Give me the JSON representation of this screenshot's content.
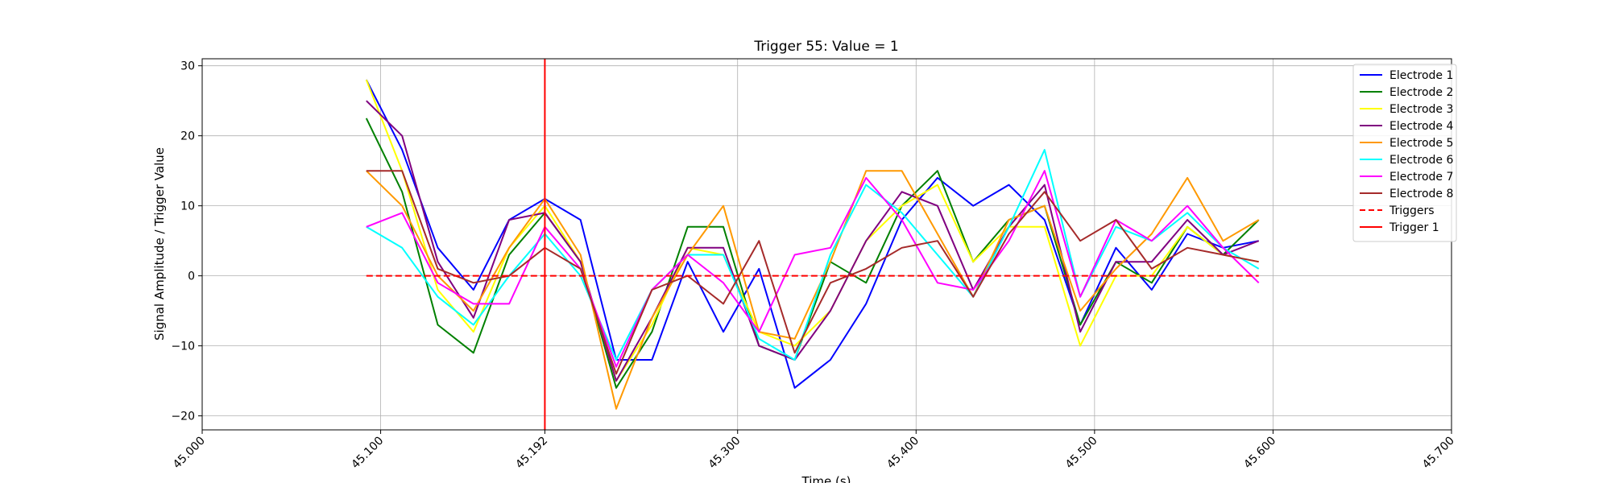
{
  "chart_data": {
    "type": "line",
    "title": "Trigger 55: Value = 1",
    "xlabel": "Time (s)",
    "ylabel": "Signal Amplitude / Trigger Value",
    "xlim": [
      45.0,
      45.7
    ],
    "ylim": [
      -22,
      31
    ],
    "x_ticks": [
      45.0,
      45.1,
      45.192,
      45.3,
      45.4,
      45.5,
      45.6,
      45.7
    ],
    "x_tick_labels": [
      "45.000",
      "45.100",
      "45.192",
      "45.300",
      "45.400",
      "45.500",
      "45.600",
      "45.700"
    ],
    "y_ticks": [
      -20,
      -10,
      0,
      10,
      20,
      30
    ],
    "y_tick_labels": [
      "−20",
      "−10",
      "0",
      "10",
      "20",
      "30"
    ],
    "grid": true,
    "legend_position": "top-right",
    "x": [
      45.092,
      45.112,
      45.132,
      45.152,
      45.172,
      45.192,
      45.212,
      45.232,
      45.252,
      45.272,
      45.292,
      45.312,
      45.332,
      45.352,
      45.372,
      45.392,
      45.412,
      45.432,
      45.452,
      45.472,
      45.492,
      45.512,
      45.532,
      45.552,
      45.572,
      45.592
    ],
    "series": [
      {
        "name": "Electrode 1",
        "color": "#0000ff",
        "style": "solid",
        "values": [
          28,
          18,
          4,
          -2,
          8,
          11,
          8,
          -12,
          -12,
          2,
          -8,
          1,
          -16,
          -12,
          -4,
          8,
          14,
          10,
          13,
          8,
          -7,
          4,
          -2,
          6,
          4,
          5
        ]
      },
      {
        "name": "Electrode 2",
        "color": "#008000",
        "style": "solid",
        "values": [
          22.5,
          12,
          -7,
          -11,
          3,
          9,
          2,
          -16,
          -8,
          7,
          7,
          -10,
          -12,
          2,
          -1,
          10,
          15,
          2,
          8,
          10,
          -7,
          2,
          -1,
          7,
          3,
          8
        ]
      },
      {
        "name": "Electrode 3",
        "color": "#ffff00",
        "style": "solid",
        "values": [
          28,
          15,
          -2,
          -8,
          4,
          10,
          2,
          -15,
          -7,
          4,
          3,
          -8,
          -10,
          -5,
          5,
          10,
          13,
          2,
          7,
          7,
          -10,
          0,
          0,
          7,
          3,
          2
        ]
      },
      {
        "name": "Electrode 4",
        "color": "#800080",
        "style": "solid",
        "values": [
          25,
          20,
          2,
          -6,
          8,
          9,
          2,
          -15,
          -6,
          4,
          4,
          -10,
          -12,
          -5,
          5,
          12,
          10,
          -2,
          7,
          13,
          -8,
          2,
          2,
          8,
          3,
          5
        ]
      },
      {
        "name": "Electrode 5",
        "color": "#ff9900",
        "style": "solid",
        "values": [
          15,
          10,
          0,
          -5,
          4,
          11,
          3,
          -19,
          -6,
          3,
          10,
          -8,
          -9,
          2,
          15,
          15,
          6,
          -3,
          8,
          10,
          -5,
          1,
          6,
          14,
          5,
          8
        ]
      },
      {
        "name": "Electrode 6",
        "color": "#00ffff",
        "style": "solid",
        "values": [
          7,
          4,
          -3,
          -7,
          0,
          6,
          0,
          -12,
          -2,
          3,
          3,
          -9,
          -12,
          3,
          13,
          9,
          3,
          -3,
          7,
          18,
          -3,
          7,
          5,
          9,
          4,
          1
        ]
      },
      {
        "name": "Electrode 7",
        "color": "#ff00ff",
        "style": "solid",
        "values": [
          7,
          9,
          -1,
          -4,
          -4,
          7,
          1,
          -13,
          -2,
          3,
          -1,
          -8,
          3,
          4,
          14,
          8,
          -1,
          -2,
          5,
          15,
          -3,
          8,
          5,
          10,
          4,
          -1
        ]
      },
      {
        "name": "Electrode 8",
        "color": "#a52a2a",
        "style": "solid",
        "values": [
          15,
          15,
          1,
          -1,
          0,
          4,
          1,
          -14,
          -2,
          0,
          -4,
          5,
          -11,
          -1,
          1,
          4,
          5,
          -3,
          6,
          12,
          5,
          8,
          1,
          4,
          3,
          2
        ]
      },
      {
        "name": "Triggers",
        "color": "#ff0000",
        "style": "dashed",
        "values": [
          0,
          0,
          0,
          0,
          0,
          0,
          0,
          0,
          0,
          0,
          0,
          0,
          0,
          0,
          0,
          0,
          0,
          0,
          0,
          0,
          0,
          0,
          0,
          0,
          0,
          0
        ]
      }
    ],
    "vertical_lines": [
      {
        "name": "Trigger 1",
        "x": 45.192,
        "color": "#ff0000"
      }
    ]
  }
}
